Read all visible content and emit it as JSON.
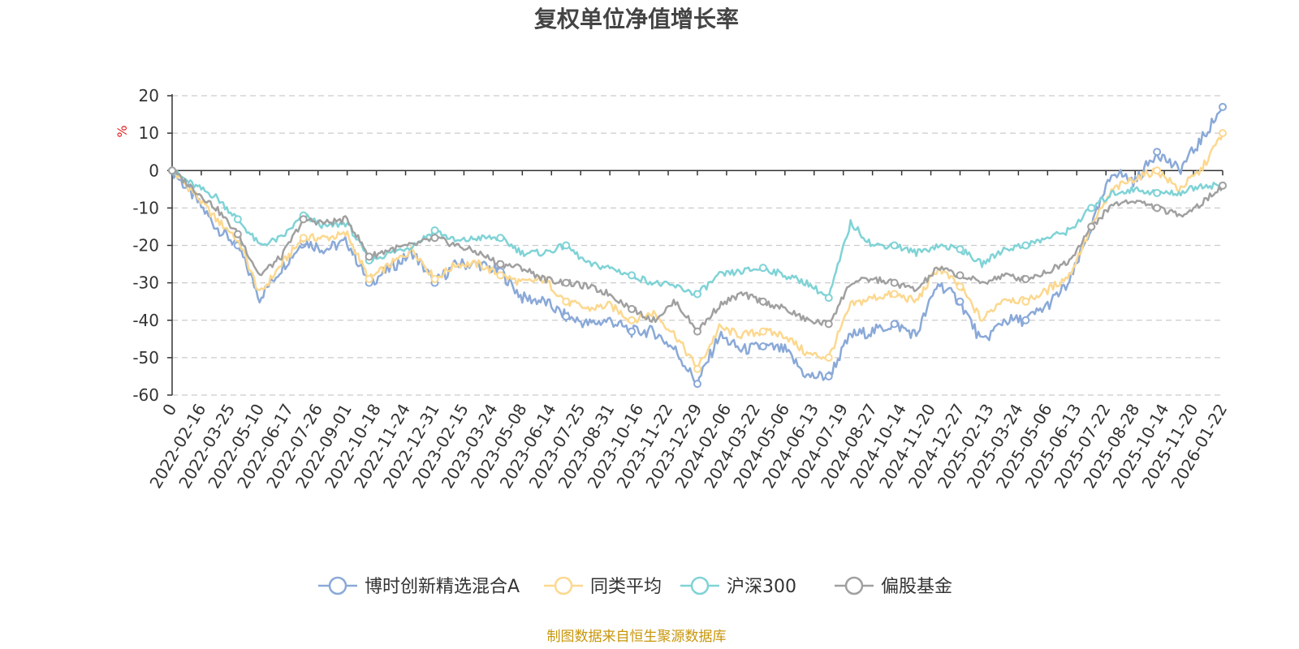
{
  "colors": {
    "series": [
      "#8aa9d8",
      "#fcd88f",
      "#7fd3d6",
      "#a0a0a0"
    ],
    "unit": "#e02020",
    "source": "#c8960a",
    "grid": "#cccccc",
    "axis": "#333333"
  },
  "chart_data": {
    "type": "line",
    "title": "复权单位净值增长率",
    "ylabel": "%",
    "ylim": [
      -60,
      20
    ],
    "yticks": [
      "20",
      "10",
      "0",
      "-10",
      "-20",
      "-30",
      "-40",
      "-50",
      "-60"
    ],
    "xticks": [
      "0",
      "2022-02-16",
      "2022-03-25",
      "2022-05-10",
      "2022-06-17",
      "2022-07-26",
      "2022-09-01",
      "2022-10-18",
      "2022-11-24",
      "2022-12-31",
      "2023-02-15",
      "2023-03-24",
      "2023-05-08",
      "2023-06-14",
      "2023-07-25",
      "2023-08-31",
      "2023-10-16",
      "2023-11-22",
      "2023-12-29",
      "2024-02-06",
      "2024-03-22",
      "2024-05-06",
      "2024-06-13",
      "2024-07-19",
      "2024-08-27",
      "2024-10-14",
      "2024-11-20",
      "2024-12-27",
      "2025-02-13",
      "2025-03-24",
      "2025-05-06",
      "2025-06-13",
      "2025-07-22",
      "2025-08-28",
      "2025-10-14",
      "2025-11-20",
      "2026-01-22"
    ],
    "legend": [
      "博时创新精选混合A",
      "同类平均",
      "沪深300",
      "偏股基金"
    ],
    "series": [
      {
        "name": "博时创新精选混合A",
        "values": [
          0,
          -7,
          -15,
          -20,
          -34,
          -26,
          -19,
          -21,
          -19,
          -30,
          -26,
          -22,
          -30,
          -25,
          -25,
          -27,
          -34,
          -35,
          -39,
          -41,
          -40,
          -43,
          -43,
          -48,
          -57,
          -44,
          -48,
          -47,
          -48,
          -55,
          -55,
          -44,
          -43,
          -41,
          -44,
          -30,
          -35,
          -46,
          -40,
          -40,
          -36,
          -30,
          -15,
          0,
          -3,
          5,
          0,
          8,
          17
        ]
      },
      {
        "name": "同类平均",
        "values": [
          0,
          -6,
          -13,
          -18,
          -33,
          -25,
          -18,
          -18,
          -17,
          -29,
          -25,
          -21,
          -29,
          -25,
          -25,
          -28,
          -30,
          -29,
          -35,
          -37,
          -36,
          -40,
          -38,
          -44,
          -53,
          -42,
          -44,
          -43,
          -44,
          -49,
          -50,
          -36,
          -34,
          -33,
          -35,
          -26,
          -31,
          -40,
          -34,
          -35,
          -32,
          -28,
          -15,
          -5,
          -2,
          0,
          -5,
          0,
          10
        ]
      },
      {
        "name": "沪深300",
        "values": [
          0,
          -4,
          -7,
          -13,
          -20,
          -18,
          -12,
          -15,
          -14,
          -24,
          -22,
          -20,
          -16,
          -19,
          -18,
          -18,
          -22,
          -22,
          -20,
          -25,
          -26,
          -28,
          -30,
          -31,
          -33,
          -28,
          -27,
          -26,
          -28,
          -30,
          -34,
          -14,
          -20,
          -20,
          -22,
          -20,
          -21,
          -25,
          -21,
          -20,
          -18,
          -16,
          -10,
          -6,
          -5,
          -6,
          -6,
          -4,
          -4
        ]
      },
      {
        "name": "偏股基金",
        "values": [
          0,
          -5,
          -10,
          -17,
          -28,
          -23,
          -13,
          -14,
          -13,
          -23,
          -21,
          -20,
          -18,
          -20,
          -22,
          -25,
          -26,
          -29,
          -30,
          -31,
          -33,
          -37,
          -40,
          -35,
          -43,
          -36,
          -33,
          -35,
          -37,
          -40,
          -41,
          -30,
          -29,
          -30,
          -32,
          -26,
          -28,
          -30,
          -28,
          -29,
          -27,
          -24,
          -15,
          -9,
          -8,
          -10,
          -12,
          -9,
          -4
        ]
      }
    ]
  },
  "source": "制图数据来自恒生聚源数据库"
}
